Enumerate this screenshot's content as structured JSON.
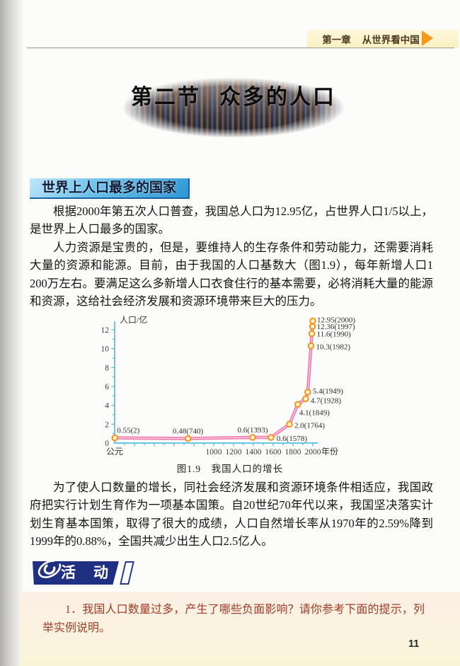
{
  "header": {
    "chapter_label": "第一章",
    "chapter_title": "从世界看中国"
  },
  "section": {
    "label": "第二节",
    "title": "众多的人口"
  },
  "topic_heading": "世界上人口最多的国家",
  "paragraphs": [
    "根据2000年第五次人口普查，我国总人口为12.95亿，占世界人口1/5以上，是世界上人口最多的国家。",
    "人力资源是宝贵的，但是，要维持人的生存条件和劳动能力，还需要消耗大量的资源和能源。目前，由于我国的人口基数大（图1.9），每年新增人口1 200万左右。要满足这么多新增人口衣食住行的基本需要，必将消耗大量的能源和资源，这给社会经济发展和资源环境带来巨大的压力。",
    "为了使人口数量的增长，同社会经济发展和资源环境条件相适应，我国政府把实行计划生育作为一项基本国策。自20世纪70年代以来，我国坚决落实计划生育基本国策，取得了很大的成绩，人口自然增长率从1970年的2.59%降到1999年的0.88%，全国共减少出生人口2.5亿人。"
  ],
  "figure": {
    "caption": "图1.9　我国人口的增长"
  },
  "chart_data": {
    "type": "line",
    "title": "图1.9 我国人口的增长",
    "ylabel": "人口/亿",
    "xlabel": "年份",
    "x_origin_label": "公元",
    "x": [
      2,
      740,
      1393,
      1578,
      1764,
      1849,
      1928,
      1949,
      1982,
      1990,
      1997,
      2000
    ],
    "y": [
      0.55,
      0.48,
      0.6,
      0.6,
      2.0,
      4.1,
      4.7,
      5.4,
      10.3,
      11.6,
      12.36,
      12.95
    ],
    "point_labels": [
      "0.55(2)",
      "0.48(740)",
      "0.6(1393)",
      "0.6(1578)",
      "2.0(1764)",
      "4.1(1849)",
      "4.7(1928)",
      "5.4(1949)",
      "10.3(1982)",
      "11.6(1990)",
      "12.36(1997)",
      "12.95(2000)"
    ],
    "xlim": [
      0,
      2000
    ],
    "ylim": [
      0,
      13
    ],
    "x_major_ticks": [
      1000,
      1200,
      1400,
      1600,
      1800,
      2000
    ],
    "x_minor_tick_step": 100,
    "y_ticks": [
      0,
      2,
      4,
      6,
      8,
      10,
      12
    ],
    "y_minor_tick_step": 1,
    "grid": false,
    "legend": false,
    "axis_color": "#56bee6",
    "line_color": "#ef75ab",
    "line_highlight_color": "#ffd0e2",
    "marker_stroke": "#f5921e",
    "marker_fill": "#fff3cf",
    "label_color": "#2c2c2c",
    "label_offsets": [
      [
        3,
        -7,
        "s"
      ],
      [
        0,
        -7,
        "m"
      ],
      [
        0,
        -7,
        "m"
      ],
      [
        8,
        5,
        "s"
      ],
      [
        7,
        5,
        "s"
      ],
      [
        2,
        15,
        "s"
      ],
      [
        7,
        6,
        "s"
      ],
      [
        7,
        2,
        "s"
      ],
      [
        7,
        5,
        "s"
      ],
      [
        7,
        4,
        "s"
      ],
      [
        6,
        4,
        "s"
      ],
      [
        6,
        2,
        "s"
      ]
    ]
  },
  "activity": {
    "banner_label": "活　动",
    "items": [
      "1．我国人口数量过多，产生了哪些负面影响？请你参考下面的提示，列举实例说明。"
    ]
  },
  "page_number": "11",
  "colors": {
    "header_bar": "#fbf0c2",
    "arrow": "#f5991e",
    "heading_bg": "#2e97d3",
    "banner_bg": "#1f2f82",
    "activity_text": "#a03c28"
  }
}
